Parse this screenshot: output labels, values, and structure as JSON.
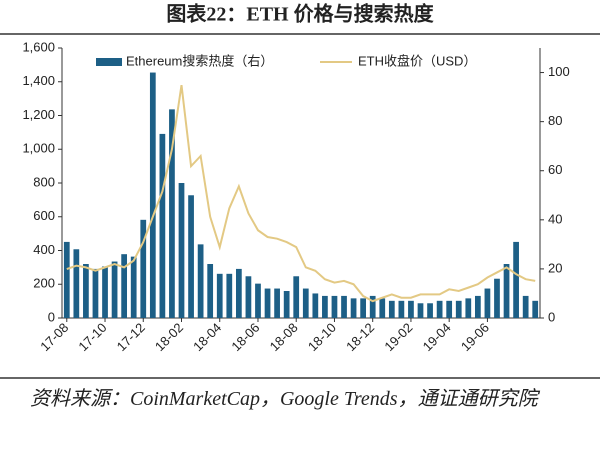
{
  "chart_data": {
    "type": "bar_line",
    "title": "图表22：ETH 价格与搜索热度",
    "categories": [
      "17-08",
      null,
      null,
      null,
      "17-10",
      null,
      null,
      null,
      "17-12",
      null,
      null,
      null,
      "18-02",
      null,
      null,
      null,
      "18-04",
      null,
      null,
      null,
      "18-06",
      null,
      null,
      null,
      "18-08",
      null,
      null,
      null,
      "18-10",
      null,
      null,
      null,
      "18-12",
      null,
      null,
      null,
      "19-02",
      null,
      null,
      null,
      "19-04",
      null,
      null,
      null,
      "19-06",
      null,
      null,
      null,
      null,
      null
    ],
    "series": [
      {
        "name": "Ethereum搜索热度（右）",
        "color": "#1d5f86",
        "axis": "y2",
        "values": [
          31,
          28,
          22,
          20,
          21,
          23,
          26,
          25,
          40,
          100,
          75,
          85,
          55,
          50,
          30,
          22,
          18,
          18,
          20,
          17,
          14,
          12,
          12,
          11,
          17,
          12,
          10,
          9,
          9,
          9,
          8,
          8,
          9,
          8,
          7,
          7,
          7,
          6,
          6,
          7,
          7,
          7,
          8,
          9,
          12,
          16,
          22,
          31,
          9,
          7
        ]
      },
      {
        "name": "ETH收盘价（USD）",
        "color": "#e3c984",
        "axis": "y",
        "values": [
          290,
          310,
          300,
          280,
          300,
          320,
          300,
          340,
          450,
          600,
          750,
          1000,
          1380,
          900,
          960,
          600,
          420,
          650,
          780,
          620,
          520,
          480,
          470,
          450,
          420,
          300,
          280,
          230,
          210,
          220,
          200,
          130,
          100,
          120,
          140,
          120,
          120,
          140,
          140,
          140,
          170,
          160,
          180,
          200,
          240,
          270,
          300,
          260,
          230,
          220
        ]
      }
    ],
    "ylim": [
      0,
      1600
    ],
    "yticks": [
      0,
      200,
      400,
      600,
      800,
      {
        "value": 1000,
        "label": "1,000"
      },
      {
        "value": 1200,
        "label": "1,200"
      },
      {
        "value": 1400,
        "label": "1,400"
      },
      {
        "value": 1600,
        "label": "1,600"
      }
    ],
    "y2lim": [
      0,
      110
    ],
    "y2ticks": [
      0,
      20,
      40,
      60,
      80,
      100
    ],
    "source": "资料来源：CoinMarketCap，Google Trends，通证通研究院"
  }
}
